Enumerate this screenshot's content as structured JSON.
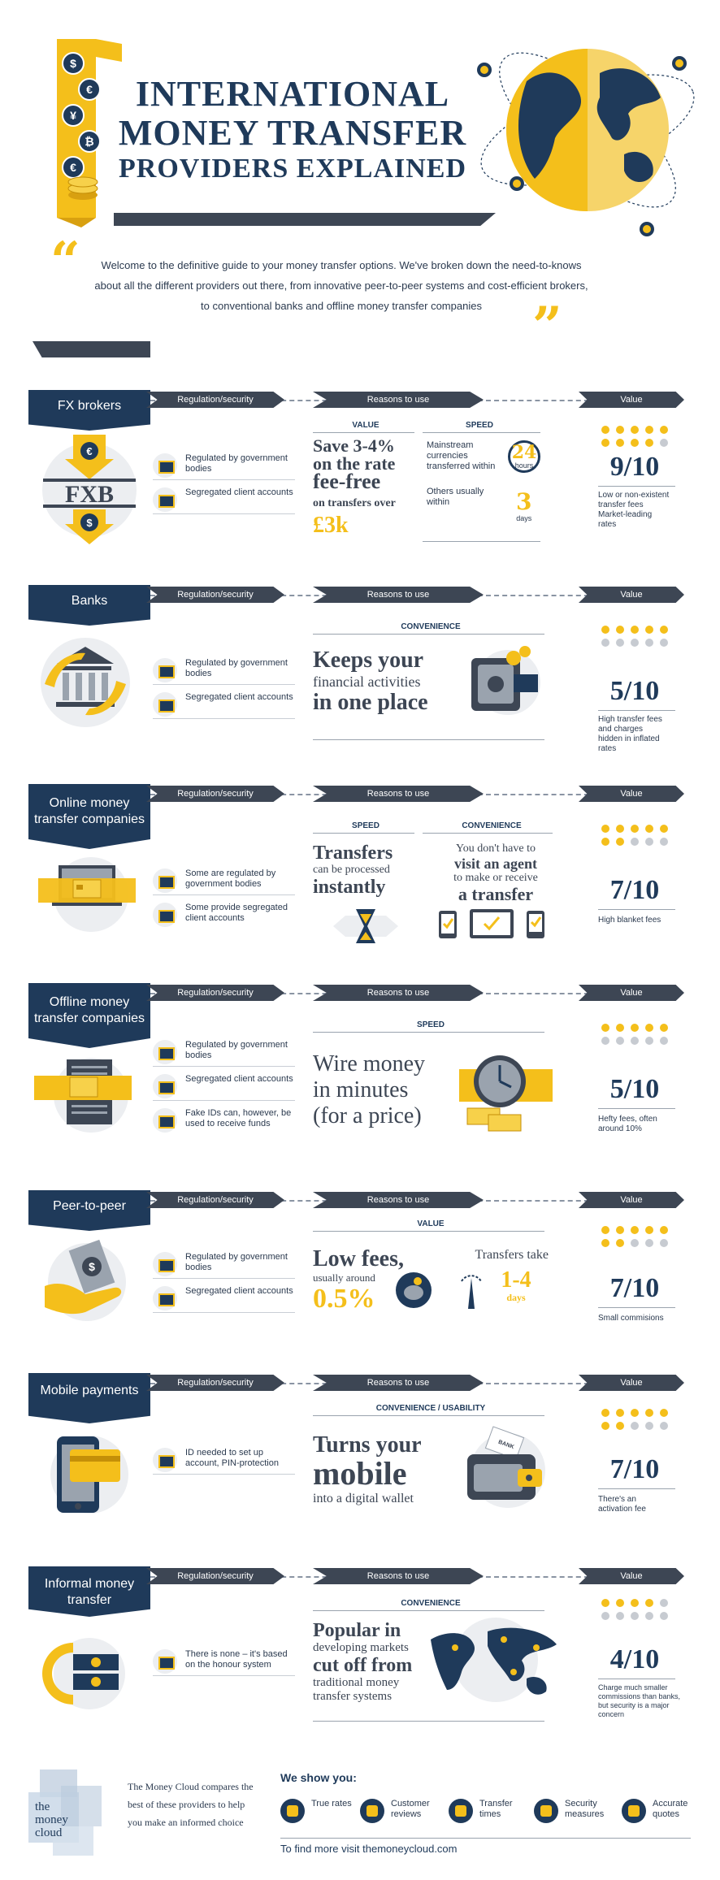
{
  "header": {
    "title_line1": "INTERNATIONAL",
    "title_line2": "MONEY TRANSFER",
    "title_line3": "PROVIDERS EXPLAINED",
    "intro": "Welcome to the definitive guide to your money transfer options. We've broken down the need-to-knows about all the different providers out there, from innovative peer-to-peer systems and cost-efficient brokers, to conventional banks and offline money transfer companies",
    "coin_symbols": [
      "$",
      "€",
      "¥",
      "₿",
      "€"
    ]
  },
  "headers": {
    "regulation": "Regulation/security",
    "reasons": "Reasons to use",
    "value": "Value"
  },
  "sections": [
    {
      "name": "FX brokers",
      "logo_text": "FXB",
      "reg": [
        "Regulated by government bodies",
        "Segregated client accounts"
      ],
      "sub": [
        "VALUE",
        "SPEED"
      ],
      "reason_a": [
        "Save 3-4%",
        "on the rate",
        "fee-free",
        "on transfers over",
        "£3k"
      ],
      "reason_b": [
        "Mainstream currencies transferred within",
        "24",
        "hours",
        "Others usually within",
        "3",
        "days"
      ],
      "score": "9/10",
      "rating": 9,
      "note": "Low or non-existent transfer fees Market-leading rates"
    },
    {
      "name": "Banks",
      "reg": [
        "Regulated by government bodies",
        "Segregated client accounts"
      ],
      "sub": [
        "CONVENIENCE"
      ],
      "reason_a": [
        "Keeps your",
        "financial activities",
        "in one place"
      ],
      "score": "5/10",
      "rating": 5,
      "note": "High transfer fees and charges hidden in inflated rates"
    },
    {
      "name": "Online money transfer companies",
      "reg": [
        "Some are regulated by government bodies",
        "Some provide segregated client accounts"
      ],
      "sub": [
        "SPEED",
        "CONVENIENCE"
      ],
      "reason_a": [
        "Transfers",
        "can be processed",
        "instantly"
      ],
      "reason_b": [
        "You don't have to",
        "visit an agent",
        "to make or receive",
        "a transfer"
      ],
      "score": "7/10",
      "rating": 7,
      "note": "High blanket fees"
    },
    {
      "name": "Offline money transfer companies",
      "reg": [
        "Regulated by government bodies",
        "Segregated client accounts",
        "Fake IDs can, however, be used to receive funds"
      ],
      "sub": [
        "SPEED"
      ],
      "reason_a": [
        "Wire money",
        "in minutes",
        "(for a price)"
      ],
      "score": "5/10",
      "rating": 5,
      "note": "Hefty fees, often around 10%"
    },
    {
      "name": "Peer-to-peer",
      "reg": [
        "Regulated by government bodies",
        "Segregated client accounts"
      ],
      "sub": [
        "VALUE"
      ],
      "reason_a": [
        "Low fees,",
        "usually around",
        "0.5%"
      ],
      "reason_b": [
        "Transfers take",
        "1-4",
        "days"
      ],
      "score": "7/10",
      "rating": 7,
      "note": "Small commisions"
    },
    {
      "name": "Mobile payments",
      "reg": [
        "ID needed to set up account, PIN-protection"
      ],
      "sub": [
        "CONVENIENCE / USABILITY"
      ],
      "reason_a": [
        "Turns your",
        "mobile",
        "into a digital wallet"
      ],
      "wallet_label": "BANK",
      "score": "7/10",
      "rating": 7,
      "note": "There's an activation fee"
    },
    {
      "name": "Informal money transfer",
      "reg": [
        "There is none – it's based on the honour system"
      ],
      "sub": [
        "CONVENIENCE"
      ],
      "reason_a": [
        "Popular in",
        "developing markets",
        "cut off from",
        "traditional money",
        "transfer systems"
      ],
      "score": "4/10",
      "rating": 4,
      "note": "Charge much smaller commissions than banks, but security is a major concern"
    }
  ],
  "footer": {
    "logo": [
      "the",
      "money",
      "cloud"
    ],
    "blurb": "The Money Cloud compares the best of these providers to help you make an informed choice",
    "we_show": "We show you:",
    "features": [
      "True rates",
      "Customer reviews",
      "Transfer times",
      "Security measures",
      "Accurate quotes"
    ],
    "more": "To find more visit themoneycloud.com"
  },
  "colors": {
    "navy": "#1f3a5a",
    "gold": "#f4bf1b",
    "charcoal": "#3d4654",
    "grey": "#c7cbd1"
  }
}
